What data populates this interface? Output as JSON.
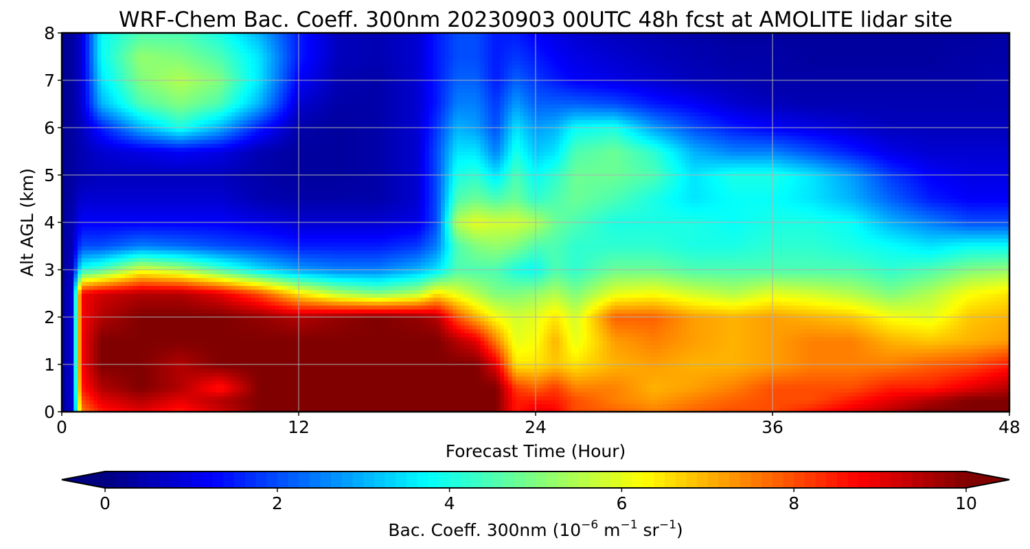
{
  "chart_data": {
    "type": "heatmap",
    "title": "WRF-Chem Bac. Coeff. 300nm  20230903 00UTC 48h fcst at AMOLITE lidar site",
    "xlabel": "Forecast Time (Hour)",
    "ylabel": "Alt AGL (km)",
    "xlim": [
      0,
      48
    ],
    "ylim": [
      0,
      8
    ],
    "xticks": [
      "0",
      "12",
      "24",
      "36",
      "48"
    ],
    "yticks": [
      "0",
      "1",
      "2",
      "3",
      "4",
      "5",
      "6",
      "7",
      "8"
    ],
    "grid": true,
    "x": [
      0,
      0.5,
      1,
      2,
      4,
      6,
      8,
      10,
      12,
      14,
      16,
      18,
      19,
      20,
      21,
      22,
      23,
      24,
      25,
      26,
      28,
      30,
      32,
      34,
      36,
      38,
      40,
      42,
      44,
      46,
      48
    ],
    "y": [
      0,
      0.25,
      0.5,
      1,
      1.5,
      2,
      2.5,
      3,
      3.5,
      4,
      4.5,
      5,
      5.5,
      6,
      6.5,
      7,
      7.5,
      8
    ],
    "z": [
      [
        0.3,
        0.8,
        7.5,
        8.5,
        9.0,
        8.5,
        9.2,
        10,
        10,
        10,
        10,
        10,
        10,
        10,
        10,
        10,
        8.5,
        9.0,
        8.8,
        8.0,
        7.8,
        7.5,
        7.8,
        8.0,
        8.0,
        8.5,
        9.0,
        9.5,
        10,
        10,
        10
      ],
      [
        0.3,
        0.8,
        8.0,
        9.0,
        9.5,
        9.0,
        9.5,
        10,
        10,
        10,
        10,
        10,
        10,
        10,
        10,
        10,
        8.5,
        8.5,
        8.5,
        8.0,
        7.5,
        7.2,
        7.5,
        7.8,
        8.0,
        8.0,
        8.5,
        9.0,
        9.5,
        10,
        10
      ],
      [
        0.3,
        0.8,
        8.5,
        9.5,
        10,
        9.5,
        8.5,
        10,
        10,
        10,
        10,
        10,
        10,
        10,
        10,
        10,
        8.2,
        7.8,
        8.2,
        7.5,
        7.5,
        7.0,
        7.2,
        7.5,
        8.0,
        8.0,
        8.0,
        8.5,
        8.5,
        9.0,
        9.5
      ],
      [
        0.3,
        0.8,
        8.8,
        10,
        10,
        9.5,
        10,
        10,
        10,
        10,
        10,
        10,
        10,
        10,
        10,
        9.0,
        6.5,
        6.5,
        6.8,
        6.5,
        7.0,
        7.2,
        7.0,
        7.0,
        7.2,
        7.5,
        7.5,
        7.5,
        7.8,
        8.0,
        8.5
      ],
      [
        0.3,
        0.8,
        8.8,
        10,
        10,
        10,
        10,
        10,
        10,
        10,
        10,
        10,
        10,
        9.5,
        9.0,
        7.5,
        6.0,
        6.2,
        7.0,
        6.0,
        7.2,
        7.5,
        7.2,
        7.0,
        7.2,
        7.5,
        7.5,
        7.0,
        6.8,
        7.0,
        7.2
      ],
      [
        0.3,
        0.8,
        8.8,
        9.5,
        10,
        10,
        10,
        9.8,
        9.5,
        9.8,
        10,
        9.8,
        9.5,
        8.0,
        7.0,
        6.2,
        5.8,
        6.0,
        6.5,
        5.8,
        7.8,
        7.8,
        7.2,
        7.0,
        7.2,
        7.0,
        6.8,
        6.2,
        6.0,
        6.8,
        7.0
      ],
      [
        0.3,
        0.8,
        8.8,
        9.2,
        9.5,
        9.5,
        9.0,
        8.0,
        6.5,
        5.5,
        5.0,
        5.5,
        6.5,
        6.0,
        5.5,
        5.0,
        5.0,
        5.2,
        5.5,
        5.0,
        6.0,
        6.2,
        5.8,
        5.5,
        6.0,
        5.8,
        5.5,
        5.0,
        5.5,
        6.2,
        6.5
      ],
      [
        0.3,
        0.6,
        4.0,
        4.5,
        6.0,
        5.5,
        4.5,
        3.5,
        2.8,
        2.5,
        2.5,
        3.0,
        3.5,
        4.5,
        4.5,
        4.5,
        4.0,
        3.8,
        4.5,
        4.2,
        4.8,
        4.8,
        4.5,
        4.5,
        4.5,
        4.5,
        4.5,
        4.2,
        4.5,
        5.0,
        5.2
      ],
      [
        0.3,
        0.5,
        2.0,
        2.0,
        2.5,
        2.3,
        2.0,
        1.8,
        1.5,
        1.5,
        1.5,
        1.8,
        2.5,
        4.5,
        5.0,
        5.2,
        5.0,
        4.5,
        4.5,
        4.2,
        4.2,
        4.2,
        4.0,
        4.0,
        4.2,
        4.2,
        4.0,
        3.8,
        3.5,
        3.8,
        3.8
      ],
      [
        0.3,
        0.5,
        1.2,
        1.2,
        1.2,
        1.2,
        1.2,
        1.0,
        0.8,
        0.8,
        0.8,
        1.0,
        2.0,
        5.5,
        6.0,
        5.8,
        5.8,
        5.5,
        4.8,
        4.5,
        4.0,
        4.0,
        4.0,
        3.8,
        4.0,
        4.0,
        3.8,
        3.0,
        2.5,
        2.0,
        2.0
      ],
      [
        0.2,
        0.4,
        0.8,
        0.8,
        0.8,
        0.8,
        0.8,
        0.5,
        0.4,
        0.4,
        0.4,
        0.8,
        2.0,
        4.5,
        4.8,
        4.5,
        4.8,
        4.2,
        4.5,
        4.8,
        4.5,
        4.0,
        3.5,
        3.8,
        3.8,
        3.5,
        3.0,
        2.2,
        1.5,
        1.2,
        1.2
      ],
      [
        0.2,
        0.3,
        0.5,
        0.6,
        0.6,
        0.6,
        0.6,
        0.4,
        0.3,
        0.3,
        0.4,
        0.8,
        2.0,
        4.0,
        4.2,
        3.5,
        4.5,
        3.8,
        4.2,
        4.8,
        4.8,
        4.5,
        3.5,
        4.0,
        4.0,
        3.5,
        2.8,
        1.8,
        1.2,
        1.0,
        1.0
      ],
      [
        0.2,
        0.3,
        0.5,
        0.8,
        1.0,
        1.2,
        1.0,
        0.5,
        0.3,
        0.3,
        0.4,
        0.8,
        2.0,
        3.5,
        3.5,
        2.5,
        4.0,
        3.2,
        3.5,
        4.5,
        4.8,
        4.2,
        3.0,
        2.5,
        2.5,
        2.0,
        1.5,
        1.0,
        0.8,
        0.8,
        0.8
      ],
      [
        0.2,
        0.3,
        0.6,
        1.5,
        3.0,
        4.0,
        3.0,
        1.5,
        0.4,
        0.3,
        0.4,
        0.8,
        1.8,
        3.0,
        2.8,
        2.0,
        3.5,
        2.8,
        3.0,
        3.8,
        4.0,
        2.8,
        2.0,
        1.5,
        1.2,
        1.0,
        0.8,
        0.6,
        0.6,
        0.6,
        0.6
      ],
      [
        0.2,
        0.3,
        0.8,
        3.0,
        4.5,
        5.0,
        4.5,
        3.0,
        0.8,
        0.4,
        0.4,
        0.8,
        1.5,
        2.5,
        2.5,
        1.8,
        2.8,
        2.2,
        2.2,
        2.2,
        2.0,
        1.5,
        1.2,
        0.8,
        0.6,
        0.5,
        0.5,
        0.5,
        0.5,
        0.5,
        0.5
      ],
      [
        0.2,
        0.3,
        0.8,
        3.5,
        5.0,
        5.5,
        5.0,
        3.5,
        1.2,
        0.5,
        0.4,
        0.8,
        1.5,
        2.2,
        2.2,
        1.5,
        2.2,
        1.8,
        1.5,
        1.2,
        1.0,
        0.8,
        0.6,
        0.5,
        0.4,
        0.4,
        0.4,
        0.4,
        0.4,
        0.4,
        0.5
      ],
      [
        0.2,
        0.3,
        0.8,
        3.8,
        5.2,
        5.0,
        4.5,
        3.5,
        1.5,
        0.6,
        0.5,
        0.8,
        1.5,
        2.0,
        2.0,
        1.5,
        1.8,
        1.5,
        1.2,
        1.0,
        0.8,
        0.6,
        0.5,
        0.4,
        0.4,
        0.3,
        0.3,
        0.3,
        0.3,
        0.4,
        0.4
      ],
      [
        0.2,
        0.3,
        0.8,
        3.8,
        4.5,
        4.5,
        4.0,
        3.0,
        1.5,
        0.6,
        0.5,
        0.8,
        1.5,
        2.0,
        2.0,
        1.5,
        1.5,
        1.2,
        1.0,
        0.8,
        0.6,
        0.5,
        0.4,
        0.3,
        0.3,
        0.3,
        0.3,
        0.3,
        0.3,
        0.3,
        0.4
      ]
    ],
    "colorbar": {
      "label_main": "Bac. Coeff. 300nm  (10",
      "label_exp1": "−6",
      "label_unit1": " m",
      "label_exp2": "−1",
      "label_unit2": " sr",
      "label_exp3": "−1",
      "label_close": ")",
      "range": [
        0,
        10
      ],
      "ticks": [
        "0",
        "2",
        "4",
        "6",
        "8",
        "10"
      ],
      "extend": "both",
      "colormap": "jet"
    }
  }
}
